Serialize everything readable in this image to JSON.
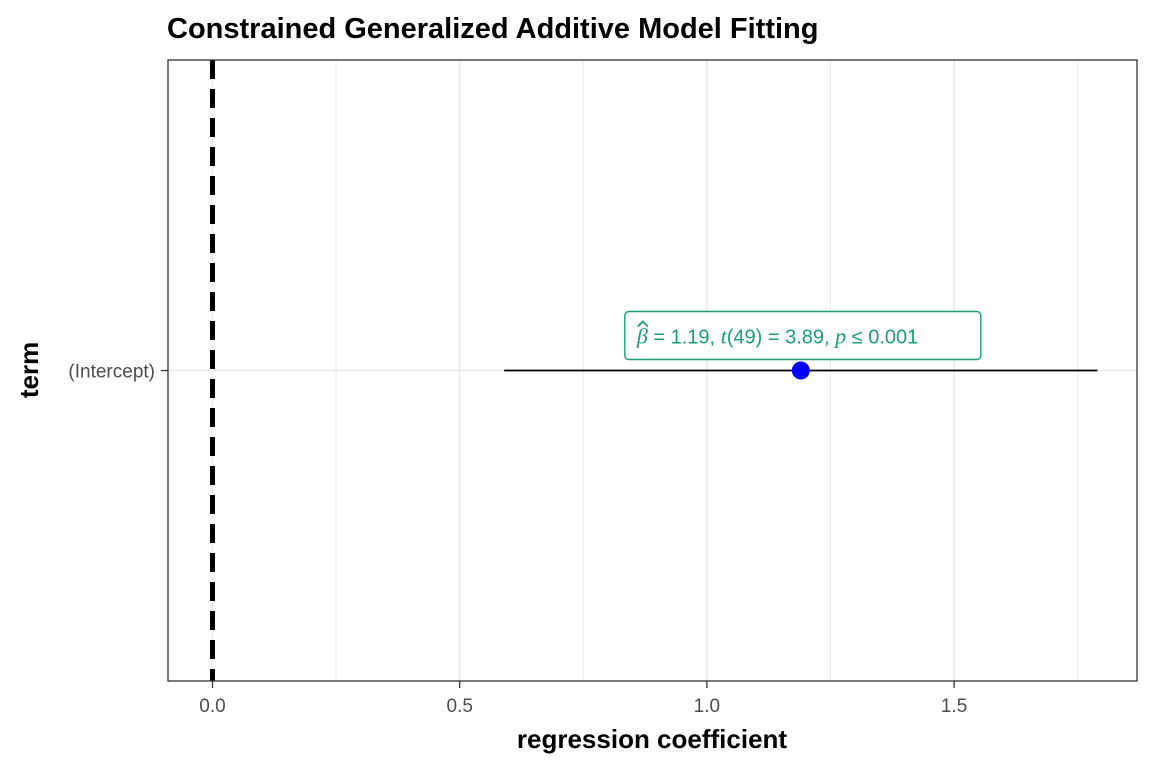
{
  "chart_data": {
    "type": "scatter",
    "title": "Constrained Generalized Additive Model Fitting",
    "xlabel": "regression coefficient",
    "ylabel": "term",
    "xlim": [
      -0.09,
      1.87
    ],
    "x_ticks": [
      0.0,
      0.5,
      1.0,
      1.5
    ],
    "x_tick_labels": [
      "0.0",
      "0.5",
      "1.0",
      "1.5"
    ],
    "x_minor_ticks": [
      0.25,
      0.75,
      1.25,
      1.75
    ],
    "categories": [
      "(Intercept)"
    ],
    "points": [
      {
        "term": "(Intercept)",
        "estimate": 1.19,
        "conf_low": 0.59,
        "conf_high": 1.79,
        "label": {
          "beta_symbol": "β",
          "estimate_text": " = 1.19,",
          "t_symbol": "t",
          "t_text": "(49) = 3.89,",
          "p_symbol": "p",
          "p_text": " ≤ 0.001"
        }
      }
    ],
    "reference_line_x": 0.0,
    "grid": true,
    "colors": {
      "point": "#0000ff",
      "label": "#1b9e77",
      "errorbar": "#000000",
      "reference_line": "#000000",
      "grid": "#ebebeb",
      "panel_border": "#333333"
    }
  }
}
